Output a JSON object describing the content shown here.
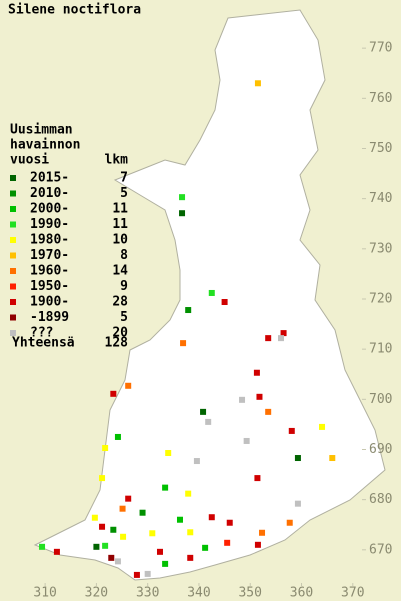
{
  "map": {
    "title": "Silene noctiflora",
    "legend_header": [
      "Uusimman",
      "havainnon",
      "vuosi"
    ],
    "count_header": "lkm",
    "xlim": [
      301.2,
      379.4
    ],
    "ylim": [
      659.8,
      779.6
    ],
    "xticks": [
      310,
      320,
      330,
      340,
      350,
      360,
      370
    ],
    "yticks": [
      670,
      680,
      690,
      700,
      710,
      720,
      730,
      740,
      750,
      760,
      770
    ],
    "entries": [
      {
        "label": "2015-",
        "count": 7,
        "color": "#006400",
        "points": [
          [
            336.7,
            737.1
          ],
          [
            340.8,
            697.5
          ],
          [
            359.3,
            688.3
          ],
          [
            320,
            670.6
          ]
        ]
      },
      {
        "label": "2010-",
        "count": 5,
        "color": "#009000",
        "points": [
          [
            337.9,
            717.8
          ],
          [
            329,
            677.4
          ],
          [
            323.3,
            674
          ]
        ]
      },
      {
        "label": "2000-",
        "count": 11,
        "color": "#00c000",
        "points": [
          [
            324.2,
            692.5
          ],
          [
            333.4,
            682.4
          ],
          [
            336.3,
            676
          ],
          [
            341.2,
            670.4
          ],
          [
            333.4,
            667.2
          ]
        ]
      },
      {
        "label": "1990-",
        "count": 11,
        "color": "#22e022",
        "points": [
          [
            336.7,
            740.3
          ],
          [
            342.5,
            721.2
          ],
          [
            321.7,
            670.8
          ],
          [
            309.4,
            670.6
          ]
        ]
      },
      {
        "label": "1980-",
        "count": 10,
        "color": "#ffff00",
        "points": [
          [
            364,
            694.5
          ],
          [
            321.7,
            690.3
          ],
          [
            334,
            689.3
          ],
          [
            321.1,
            684.3
          ],
          [
            337.9,
            681.2
          ],
          [
            319.7,
            676.4
          ],
          [
            325.2,
            672.6
          ],
          [
            330.9,
            673.3
          ],
          [
            338.3,
            673.5
          ]
        ]
      },
      {
        "label": "1970-",
        "count": 8,
        "color": "#ffc000",
        "points": [
          [
            351.5,
            763
          ],
          [
            366,
            688.3
          ]
        ]
      },
      {
        "label": "1960-",
        "count": 14,
        "color": "#ff7000",
        "points": [
          [
            336.9,
            711.2
          ],
          [
            326.2,
            702.7
          ],
          [
            353.5,
            697.5
          ],
          [
            325.1,
            678.2
          ],
          [
            357.7,
            675.4
          ],
          [
            352.3,
            673.4
          ]
        ]
      },
      {
        "label": "1950-",
        "count": 9,
        "color": "#ff2000",
        "points": [
          [
            345.5,
            671.4
          ]
        ]
      },
      {
        "label": "1900-",
        "count": 28,
        "color": "#d00000",
        "points": [
          [
            345,
            719.4
          ],
          [
            353.5,
            712.2
          ],
          [
            356.5,
            713.2
          ],
          [
            351.3,
            705.3
          ],
          [
            323.3,
            701.1
          ],
          [
            351.8,
            700.5
          ],
          [
            358.1,
            693.7
          ],
          [
            351.4,
            684.3
          ],
          [
            326.2,
            680.2
          ],
          [
            342.5,
            676.5
          ],
          [
            346,
            675.4
          ],
          [
            321.1,
            674.6
          ],
          [
            312.3,
            669.6
          ],
          [
            332.4,
            669.6
          ],
          [
            351.5,
            671
          ],
          [
            338.3,
            668.4
          ],
          [
            327.9,
            665
          ]
        ]
      },
      {
        "label": "-1899",
        "count": 5,
        "color": "#900000",
        "points": [
          [
            322.9,
            668.4
          ]
        ]
      },
      {
        "label": "???",
        "count": 20,
        "color": "#c0c0c0",
        "points": [
          [
            356,
            712.2
          ],
          [
            348.4,
            699.9
          ],
          [
            341.8,
            695.5
          ],
          [
            349.3,
            691.7
          ],
          [
            339.6,
            687.7
          ],
          [
            359.3,
            679.2
          ],
          [
            330,
            665.2
          ],
          [
            324.2,
            667.7
          ]
        ]
      }
    ],
    "total_label": "Yhteensä",
    "total": 128
  }
}
